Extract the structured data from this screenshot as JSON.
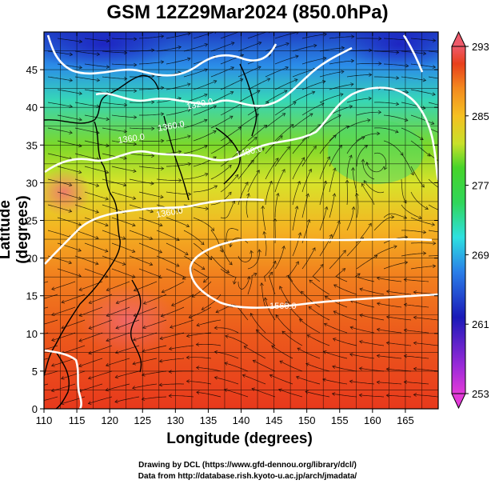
{
  "title": "GSM 12Z29Mar2024 (850.0hPa)",
  "axes": {
    "xlabel": "Longitude (degrees)",
    "ylabel": "Latitude  (degrees)",
    "xticks": [
      110,
      115,
      120,
      125,
      130,
      135,
      140,
      145,
      150,
      155,
      160,
      165
    ],
    "yticks": [
      0,
      5,
      10,
      15,
      20,
      25,
      30,
      35,
      40,
      45
    ],
    "xlim": [
      110,
      170
    ],
    "ylim": [
      0,
      50
    ]
  },
  "colorbar": {
    "labels": [
      "293",
      "285",
      "277",
      "269",
      "261",
      "253"
    ],
    "range": [
      253,
      293
    ],
    "colors": [
      "#d42ad1",
      "#1e1ec8",
      "#2b8de8",
      "#33e0d0",
      "#3ed42e",
      "#9ae02a",
      "#f2e72a",
      "#f5a21e",
      "#f06a1c",
      "#e83a1e",
      "#f06070"
    ]
  },
  "contours": {
    "labels": [
      "1320.0",
      "1360.0",
      "1360.0",
      "1400.0",
      "1360.0",
      "1560.0"
    ],
    "color": "#ffffff"
  },
  "credits": {
    "line1": "Drawing by DCL (https://www.gfd-dennou.org/library/dcl/)",
    "line2": "Data from http://database.rish.kyoto-u.ac.jp/arch/jmadata/"
  }
}
